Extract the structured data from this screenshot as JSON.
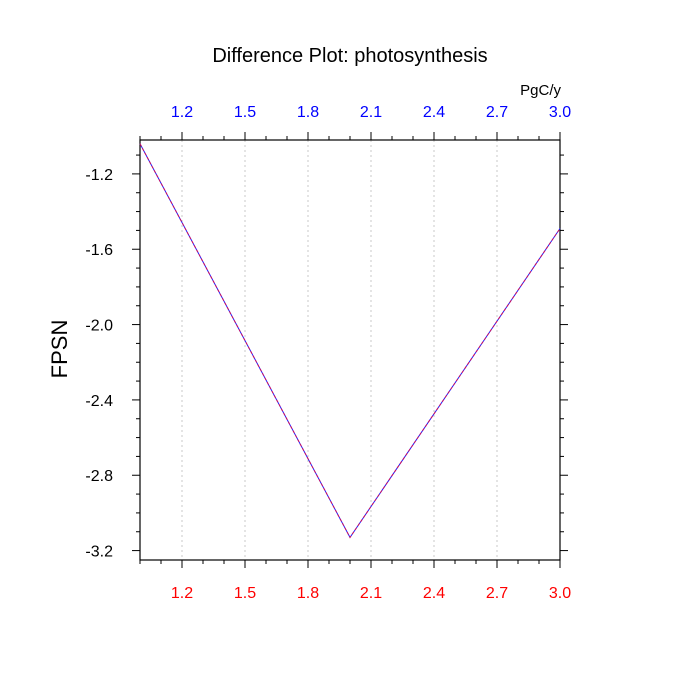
{
  "chart_data": {
    "type": "line",
    "title": "Difference Plot: photosynthesis",
    "ylabel": "FPSN",
    "top_axis_units": "PgC/y",
    "xlim": [
      1.0,
      3.0
    ],
    "ylim": [
      -3.25,
      -1.02
    ],
    "x_ticks": [
      1.2,
      1.5,
      1.8,
      2.1,
      2.4,
      2.7,
      3.0
    ],
    "x_tick_labels": [
      "1.2",
      "1.5",
      "1.8",
      "2.1",
      "2.4",
      "2.7",
      "3.0"
    ],
    "y_ticks": [
      -1.2,
      -1.6,
      -2.0,
      -2.4,
      -2.8,
      -3.2
    ],
    "y_tick_labels": [
      "-1.2",
      "-1.6",
      "-2.0",
      "-2.4",
      "-2.8",
      "-3.2"
    ],
    "grid": "vertical-dotted",
    "series": [
      {
        "x": [
          1.0,
          2.0,
          3.0
        ],
        "y": [
          -1.04,
          -3.13,
          -1.49
        ],
        "color": "#d0105a",
        "overlay_color": "#2020ff"
      }
    ],
    "colors": {
      "bottom_tick_labels": "#ff0000",
      "top_tick_labels": "#0000ff",
      "axes": "#000000",
      "grid": "#c8c8c8"
    }
  }
}
